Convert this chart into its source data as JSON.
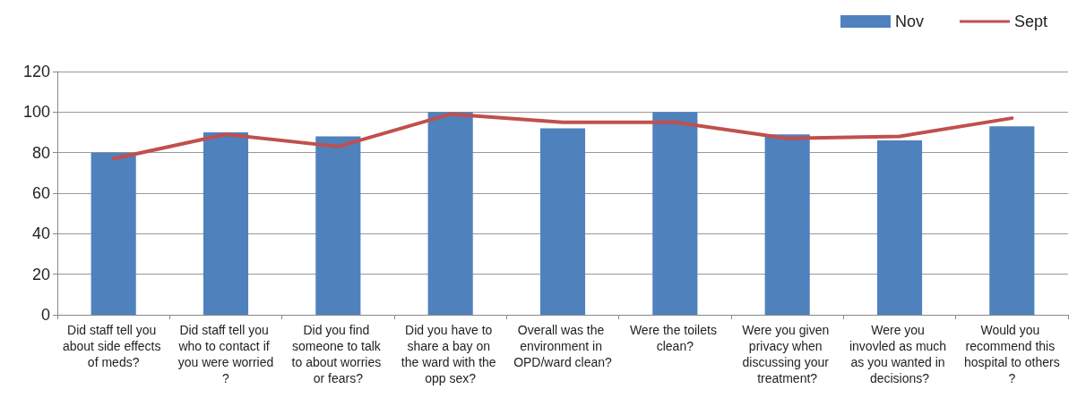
{
  "chart_data": {
    "type": "bar",
    "categories": [
      "Did staff tell you about side effects of meds?",
      "Did staff tell you who to contact if you were worried?",
      "Did you find someone to talk to about worries or fears?",
      "Did you have to share a bay on the ward with the opp sex?",
      "Overall was the environment in OPD/ward clean?",
      "Were the toilets clean?",
      "Were you given privacy when discussing your treatment?",
      "Were you invovled as much as you wanted in decisions?",
      "Would you recommend this hospital to others?"
    ],
    "series": [
      {
        "name": "Nov",
        "color": "#4f81bd",
        "values": [
          80,
          90,
          88,
          100,
          92,
          100,
          89,
          86,
          93
        ]
      },
      {
        "name": "Sept",
        "type": "line",
        "color": "#c0504d",
        "values": [
          77,
          89,
          83,
          99,
          95,
          95,
          87,
          88,
          97
        ]
      }
    ],
    "ylim": [
      0,
      120
    ],
    "yticks": [
      0,
      20,
      40,
      60,
      80,
      100,
      120
    ],
    "grid": "y",
    "legend": "top right",
    "marker": "none"
  }
}
